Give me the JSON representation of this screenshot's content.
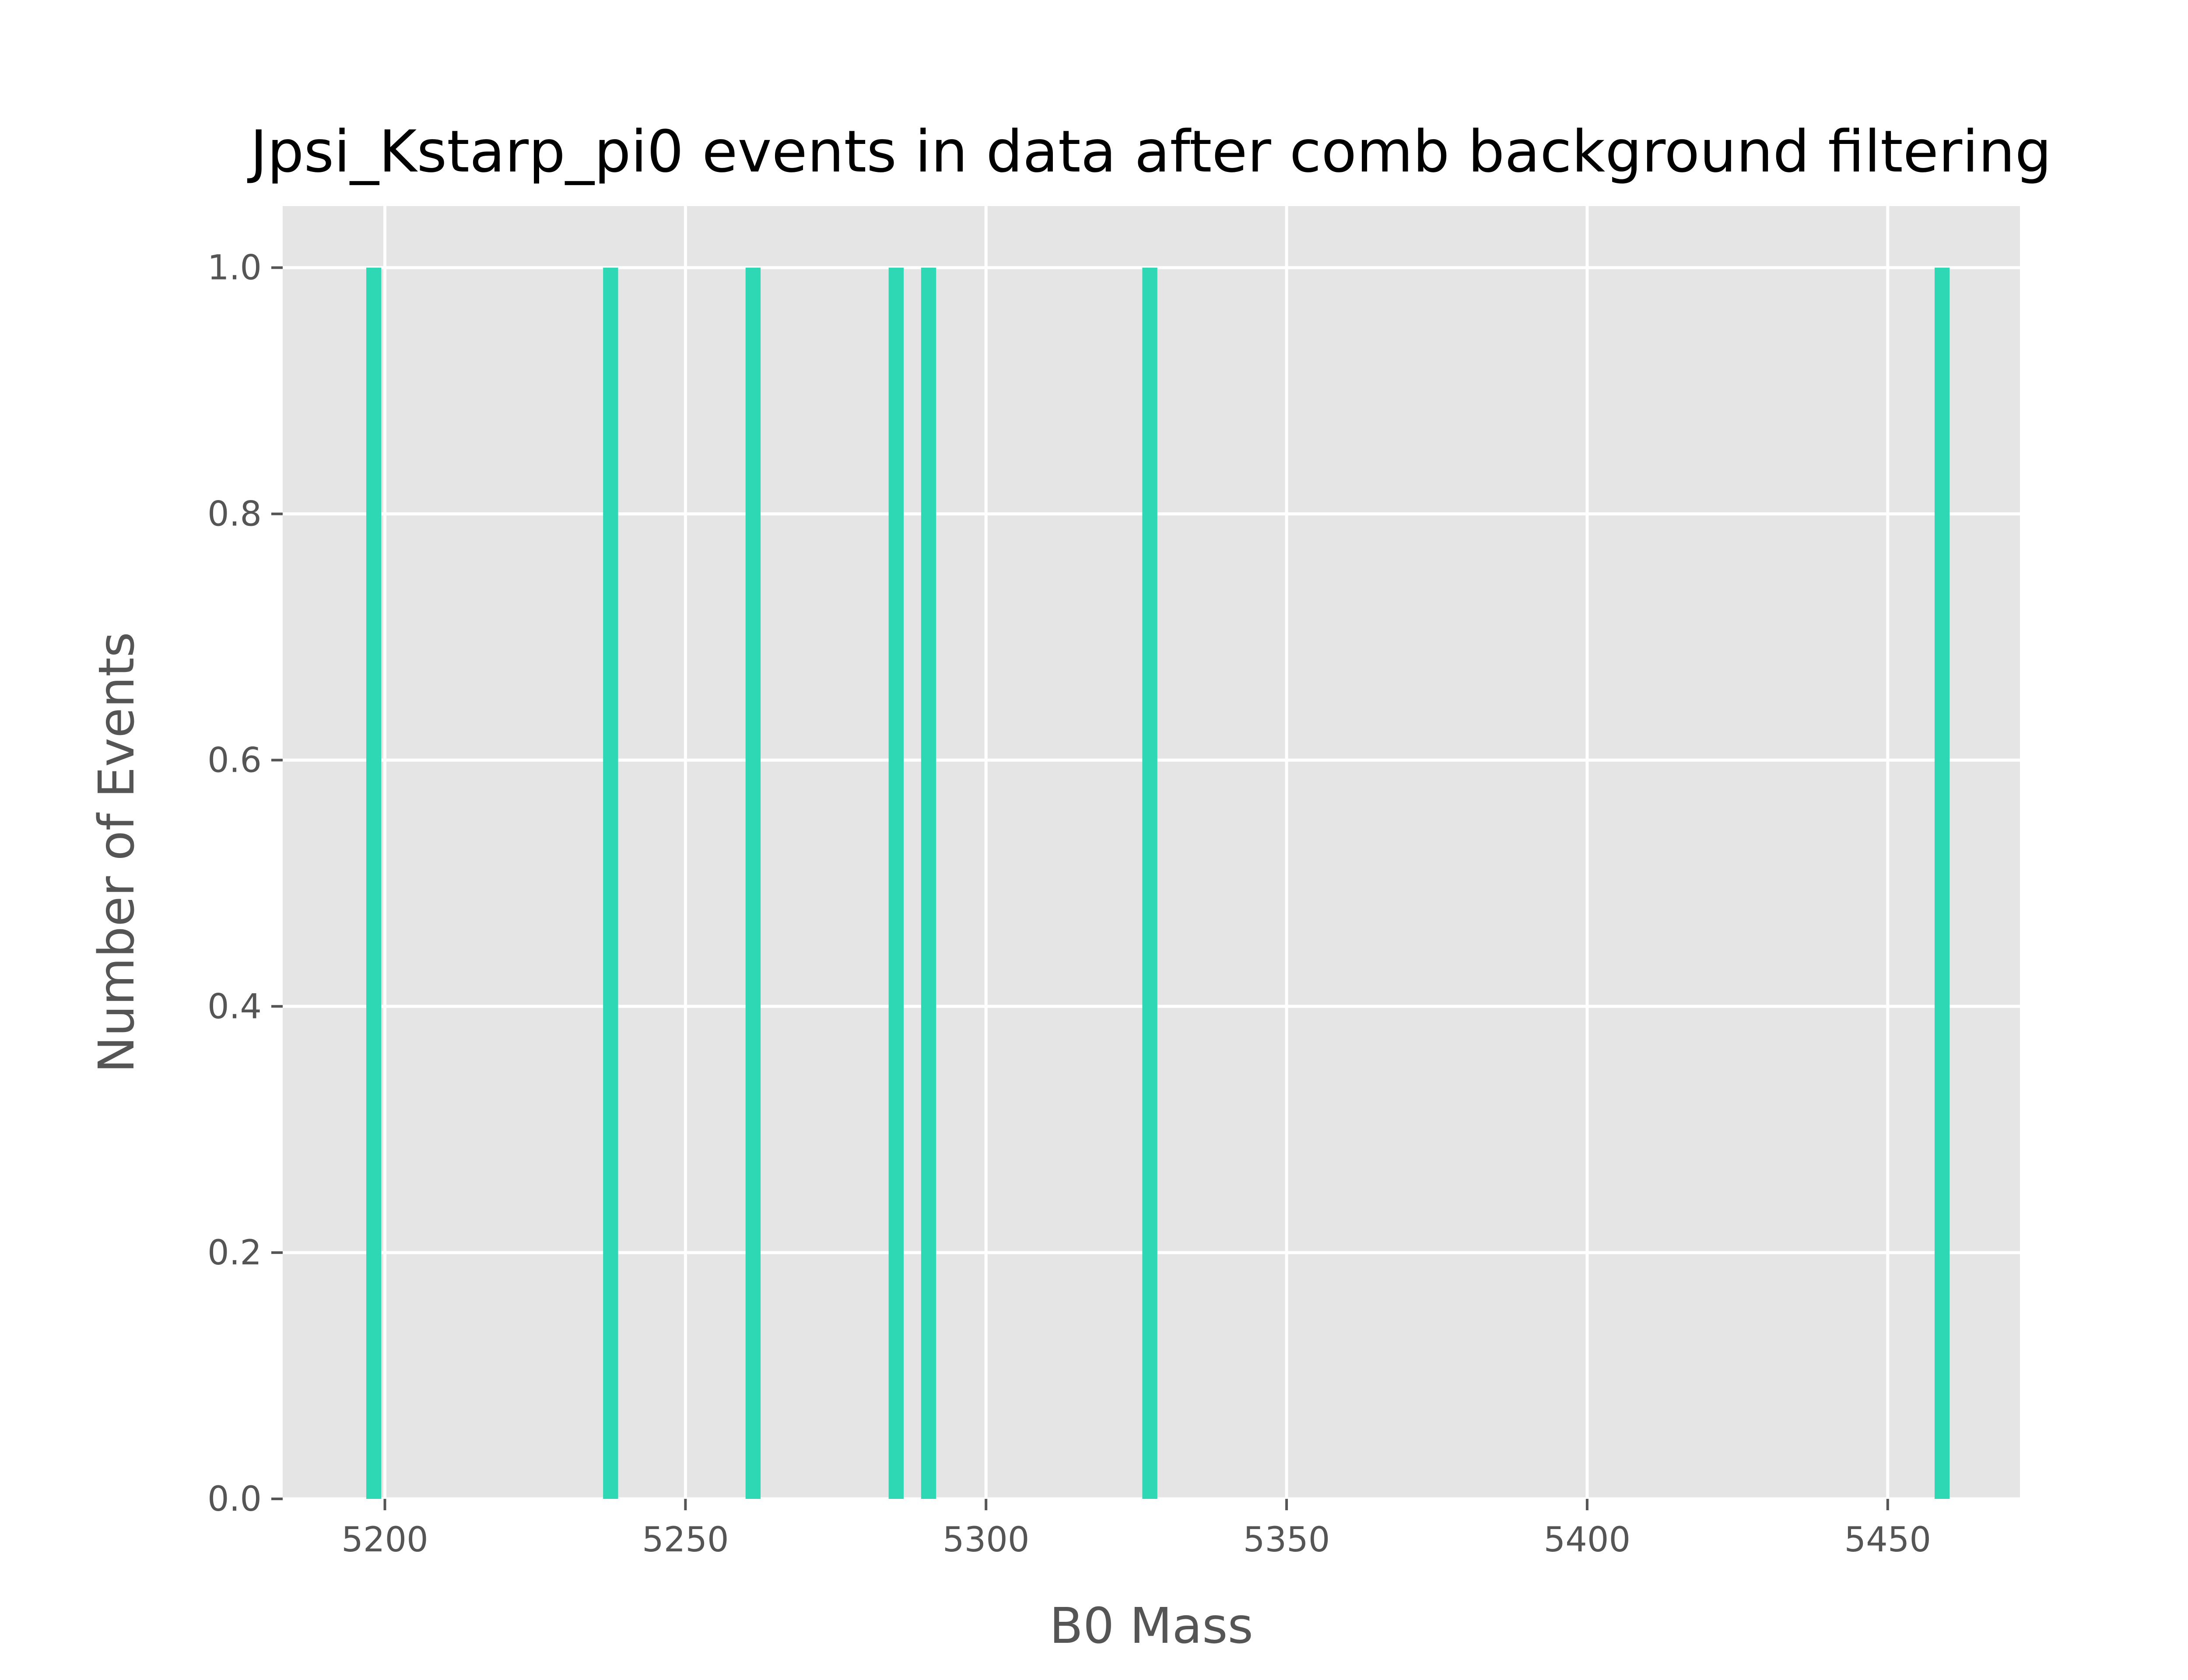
{
  "chart_data": {
    "type": "bar",
    "title": "Jpsi_Kstarp_pi0 events in data after comb background filtering",
    "xlabel": "B0 Mass",
    "ylabel": "Number of Events",
    "xlim": [
      5183,
      5472
    ],
    "ylim": [
      0,
      1.05
    ],
    "xticks": [
      5200,
      5250,
      5300,
      5350,
      5400,
      5450
    ],
    "yticks": [
      0.0,
      0.2,
      0.4,
      0.6,
      0.8,
      1.0
    ],
    "xtick_labels": [
      "5200",
      "5250",
      "5300",
      "5350",
      "5400",
      "5450"
    ],
    "ytick_labels": [
      "0.0",
      "0.2",
      "0.4",
      "0.6",
      "0.8",
      "1.0"
    ],
    "grid": true,
    "colors": {
      "bar": "#2ed8b4",
      "plot_background": "#e5e5e5",
      "grid": "#ffffff",
      "axis_text": "#555555",
      "title": "#000000"
    },
    "bins": [
      {
        "x_start": 5196.9,
        "x_end": 5199.4,
        "value": 1
      },
      {
        "x_start": 5236.3,
        "x_end": 5238.8,
        "value": 1
      },
      {
        "x_start": 5260.0,
        "x_end": 5262.5,
        "value": 1
      },
      {
        "x_start": 5283.8,
        "x_end": 5286.3,
        "value": 1
      },
      {
        "x_start": 5289.2,
        "x_end": 5291.7,
        "value": 1
      },
      {
        "x_start": 5326.0,
        "x_end": 5328.5,
        "value": 1
      },
      {
        "x_start": 5457.8,
        "x_end": 5460.3,
        "value": 1
      }
    ]
  }
}
